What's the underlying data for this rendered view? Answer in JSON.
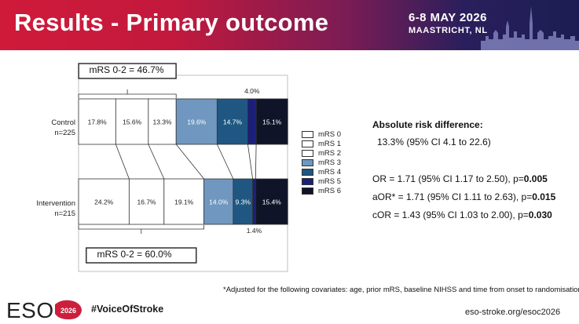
{
  "header": {
    "title": "Results - Primary outcome",
    "date": "6-8 MAY 2026",
    "place": "MAASTRICHT, NL"
  },
  "chart_data": {
    "type": "bar",
    "orientation": "horizontal-stacked-100",
    "categories": [
      "mRS 0",
      "mRS 1",
      "mRS 2",
      "mRS 3",
      "mRS 4",
      "mRS 5",
      "mRS 6"
    ],
    "colors": [
      "#ffffff",
      "#ffffff",
      "#ffffff",
      "#6f97c0",
      "#1f5782",
      "#1c1f7a",
      "#101428"
    ],
    "series": [
      {
        "group": "Control",
        "n": "n=225",
        "values": [
          17.8,
          15.6,
          13.3,
          19.6,
          14.7,
          4.0,
          15.1
        ],
        "labels": [
          "17.8%",
          "15.6%",
          "13.3%",
          "19.6%",
          "14.7%",
          "4.0%",
          "15.1%"
        ]
      },
      {
        "group": "Intervention",
        "n": "n=215",
        "values": [
          24.2,
          16.7,
          19.1,
          14.0,
          9.3,
          1.4,
          15.4
        ],
        "labels": [
          "24.2%",
          "16.7%",
          "19.1%",
          "14.0%",
          "9.3%",
          "1.4%",
          "15.4%"
        ]
      }
    ],
    "annotations": {
      "control_mrs02": "mRS 0-2 = 46.7%",
      "intervention_mrs02": "mRS 0-2 = 60.0%"
    },
    "xlim": [
      0,
      100
    ],
    "grid": false,
    "legend": "right"
  },
  "stats": {
    "ard_title": "Absolute risk difference:",
    "ard_value": "13.3% (95% CI 4.1 to 22.6)",
    "or": {
      "prefix": "OR = 1.71 (95% CI 1.17 to 2.50), p=",
      "p": "0.005"
    },
    "aor": {
      "prefix": "aOR* = 1.71 (95% CI 1.11 to 2.63), p=",
      "p": "0.015"
    },
    "cor": {
      "prefix": "cOR = 1.43 (95% CI 1.03 to 2.00), p=",
      "p": "0.030"
    }
  },
  "footnote": "*Adjusted for the following covariates: age, prior mRS, baseline NIHSS and time from onset to randomisation.",
  "footer": {
    "logo_text": "ESOC",
    "logo_year": "2026",
    "hashtag": "#VoiceOfStroke",
    "site": "eso-stroke.org/esoc2026"
  }
}
